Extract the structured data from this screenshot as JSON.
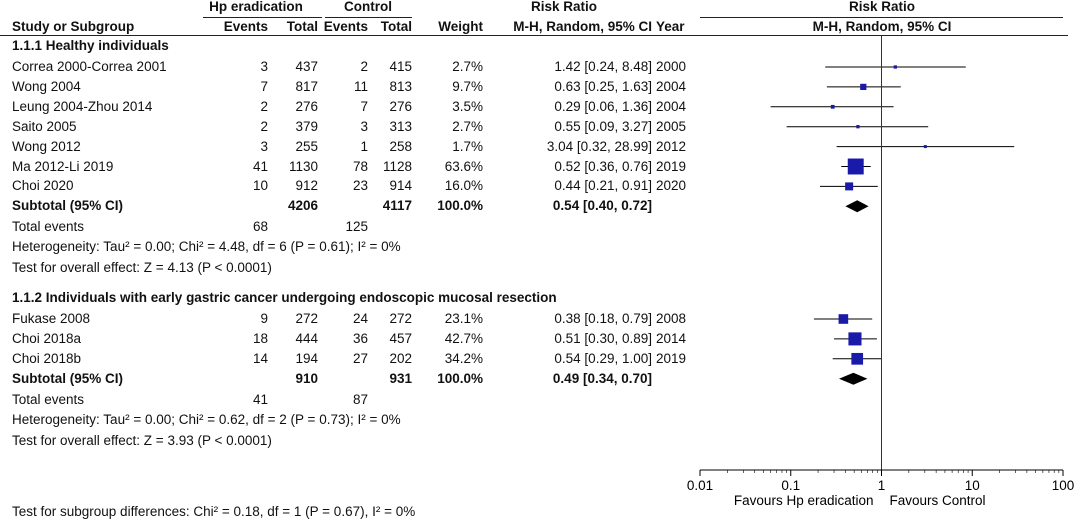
{
  "header": {
    "group1": "Hp eradication",
    "group2": "Control",
    "rr_title_left": "Risk Ratio",
    "rr_title_right": "Risk Ratio",
    "col_study": "Study or Subgroup",
    "col_events1": "Events",
    "col_total1": "Total",
    "col_events2": "Events",
    "col_total2": "Total",
    "col_weight": "Weight",
    "col_method_left": "M-H, Random, 95% CI",
    "col_year": "Year",
    "col_method_right": "M-H, Random, 95% CI"
  },
  "groups": [
    {
      "title": "1.1.1 Healthy individuals",
      "studies": [
        {
          "name": "Correa 2000-Correa 2001",
          "e1": "3",
          "t1": "437",
          "e2": "2",
          "t2": "415",
          "weight": "2.7%",
          "ci_text": "1.42 [0.24, 8.48]",
          "year": "2000",
          "rr": 1.42,
          "lo": 0.24,
          "hi": 8.48,
          "w": 2.7
        },
        {
          "name": "Wong 2004",
          "e1": "7",
          "t1": "817",
          "e2": "11",
          "t2": "813",
          "weight": "9.7%",
          "ci_text": "0.63 [0.25, 1.63]",
          "year": "2004",
          "rr": 0.63,
          "lo": 0.25,
          "hi": 1.63,
          "w": 9.7
        },
        {
          "name": "Leung 2004-Zhou 2014",
          "e1": "2",
          "t1": "276",
          "e2": "7",
          "t2": "276",
          "weight": "3.5%",
          "ci_text": "0.29 [0.06, 1.36]",
          "year": "2004",
          "rr": 0.29,
          "lo": 0.06,
          "hi": 1.36,
          "w": 3.5
        },
        {
          "name": "Saito 2005",
          "e1": "2",
          "t1": "379",
          "e2": "3",
          "t2": "313",
          "weight": "2.7%",
          "ci_text": "0.55 [0.09, 3.27]",
          "year": "2005",
          "rr": 0.55,
          "lo": 0.09,
          "hi": 3.27,
          "w": 2.7
        },
        {
          "name": "Wong 2012",
          "e1": "3",
          "t1": "255",
          "e2": "1",
          "t2": "258",
          "weight": "1.7%",
          "ci_text": "3.04 [0.32, 28.99]",
          "year": "2012",
          "rr": 3.04,
          "lo": 0.32,
          "hi": 28.99,
          "w": 1.7
        },
        {
          "name": "Ma 2012-Li 2019",
          "e1": "41",
          "t1": "1130",
          "e2": "78",
          "t2": "1128",
          "weight": "63.6%",
          "ci_text": "0.52 [0.36, 0.76]",
          "year": "2019",
          "rr": 0.52,
          "lo": 0.36,
          "hi": 0.76,
          "w": 63.6
        },
        {
          "name": "Choi 2020",
          "e1": "10",
          "t1": "912",
          "e2": "23",
          "t2": "914",
          "weight": "16.0%",
          "ci_text": "0.44 [0.21, 0.91]",
          "year": "2020",
          "rr": 0.44,
          "lo": 0.21,
          "hi": 0.91,
          "w": 16.0
        }
      ],
      "subtotal": {
        "label": "Subtotal (95% CI)",
        "t1": "4206",
        "t2": "4117",
        "weight": "100.0%",
        "ci_text": "0.54 [0.40, 0.72]",
        "rr": 0.54,
        "lo": 0.4,
        "hi": 0.72
      },
      "total_events": {
        "label": "Total events",
        "e1": "68",
        "e2": "125"
      },
      "heterogeneity": "Heterogeneity: Tau² = 0.00; Chi² = 4.48, df = 6 (P = 0.61); I² = 0%",
      "overall": "Test for overall effect: Z = 4.13 (P < 0.0001)"
    },
    {
      "title": "1.1.2 Individuals with early gastric cancer undergoing endoscopic mucosal resection",
      "studies": [
        {
          "name": "Fukase 2008",
          "e1": "9",
          "t1": "272",
          "e2": "24",
          "t2": "272",
          "weight": "23.1%",
          "ci_text": "0.38 [0.18, 0.79]",
          "year": "2008",
          "rr": 0.38,
          "lo": 0.18,
          "hi": 0.79,
          "w": 23.1
        },
        {
          "name": "Choi 2018a",
          "e1": "18",
          "t1": "444",
          "e2": "36",
          "t2": "457",
          "weight": "42.7%",
          "ci_text": "0.51 [0.30, 0.89]",
          "year": "2014",
          "rr": 0.51,
          "lo": 0.3,
          "hi": 0.89,
          "w": 42.7
        },
        {
          "name": "Choi 2018b",
          "e1": "14",
          "t1": "194",
          "e2": "27",
          "t2": "202",
          "weight": "34.2%",
          "ci_text": "0.54 [0.29, 1.00]",
          "year": "2019",
          "rr": 0.54,
          "lo": 0.29,
          "hi": 1.0,
          "w": 34.2
        }
      ],
      "subtotal": {
        "label": "Subtotal (95% CI)",
        "t1": "910",
        "t2": "931",
        "weight": "100.0%",
        "ci_text": "0.49 [0.34, 0.70]",
        "rr": 0.49,
        "lo": 0.34,
        "hi": 0.7
      },
      "total_events": {
        "label": "Total events",
        "e1": "41",
        "e2": "87"
      },
      "heterogeneity": "Heterogeneity: Tau² = 0.00; Chi² = 0.62, df = 2 (P = 0.73); I² = 0%",
      "overall": "Test for overall effect: Z = 3.93 (P < 0.0001)"
    }
  ],
  "footer": {
    "subgroup_test": "Test for subgroup differences: Chi² = 0.18, df = 1 (P = 0.67), I² = 0%"
  },
  "chart_data": {
    "type": "scatter",
    "scale": "log",
    "xlim": [
      0.01,
      100
    ],
    "ticks": [
      {
        "value": 0.01,
        "label": "0.01"
      },
      {
        "value": 0.1,
        "label": "0.1"
      },
      {
        "value": 1,
        "label": "1"
      },
      {
        "value": 10,
        "label": "10"
      },
      {
        "value": 100,
        "label": "100"
      }
    ],
    "favours_left": "Favours Hp eradication",
    "favours_right": "Favours Control",
    "colors": {
      "marker": "#1a1aa8",
      "diamond": "#000000",
      "line": "#000000"
    }
  }
}
